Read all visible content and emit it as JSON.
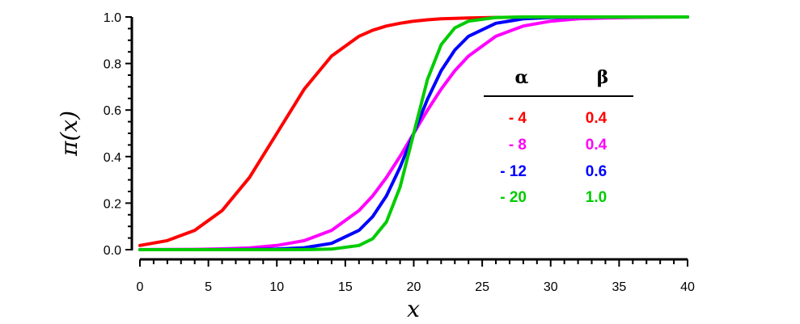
{
  "chart_data": {
    "type": "line",
    "xlabel": "x",
    "ylabel": "π(x)",
    "xlim": [
      0,
      40
    ],
    "ylim": [
      0,
      1
    ],
    "x_ticks": [
      "0",
      "5",
      "10",
      "15",
      "20",
      "25",
      "30",
      "35",
      "40"
    ],
    "y_ticks": [
      "0.0",
      "0.2",
      "0.4",
      "0.6",
      "0.8",
      "1.0"
    ],
    "grid": false,
    "legend": {
      "placement": "right-center",
      "headers": [
        "α",
        "β"
      ],
      "rows": [
        {
          "alpha": "- 4",
          "beta": "0.4",
          "color": "#ff0000"
        },
        {
          "alpha": "- 8",
          "beta": "0.4",
          "color": "#ff00ff"
        },
        {
          "alpha": "- 12",
          "beta": "0.6",
          "color": "#0000ff"
        },
        {
          "alpha": "- 20",
          "beta": "1.0",
          "color": "#00cc00"
        }
      ]
    },
    "x": [
      0,
      2,
      4,
      6,
      8,
      10,
      12,
      14,
      16,
      17,
      18,
      19,
      20,
      21,
      22,
      23,
      24,
      26,
      28,
      30,
      32,
      34,
      36,
      38,
      40
    ],
    "series": [
      {
        "color": "#ff0000",
        "values": [
          0.018,
          0.039,
          0.083,
          0.168,
          0.31,
          0.5,
          0.69,
          0.832,
          0.917,
          0.943,
          0.961,
          0.973,
          0.982,
          0.988,
          0.992,
          0.994,
          0.996,
          0.998,
          0.999,
          1.0,
          1.0,
          1.0,
          1.0,
          1.0,
          1.0
        ]
      },
      {
        "color": "#ff00ff",
        "values": [
          0.0003,
          0.0007,
          0.0015,
          0.0033,
          0.0074,
          0.018,
          0.039,
          0.083,
          0.168,
          0.231,
          0.31,
          0.401,
          0.5,
          0.599,
          0.69,
          0.769,
          0.832,
          0.917,
          0.961,
          0.982,
          0.992,
          0.996,
          0.998,
          0.999,
          1.0
        ]
      },
      {
        "color": "#0000ff",
        "values": [
          0.0,
          0.0,
          0.0,
          0.0002,
          0.0007,
          0.0025,
          0.0082,
          0.027,
          0.083,
          0.142,
          0.231,
          0.354,
          0.5,
          0.646,
          0.769,
          0.858,
          0.917,
          0.973,
          0.992,
          0.998,
          0.999,
          1.0,
          1.0,
          1.0,
          1.0
        ]
      },
      {
        "color": "#00cc00",
        "values": [
          0.0,
          0.0,
          0.0,
          0.0,
          0.0,
          0.0,
          0.0003,
          0.0025,
          0.018,
          0.047,
          0.119,
          0.269,
          0.5,
          0.731,
          0.881,
          0.953,
          0.982,
          0.998,
          1.0,
          1.0,
          1.0,
          1.0,
          1.0,
          1.0,
          1.0
        ]
      }
    ]
  }
}
